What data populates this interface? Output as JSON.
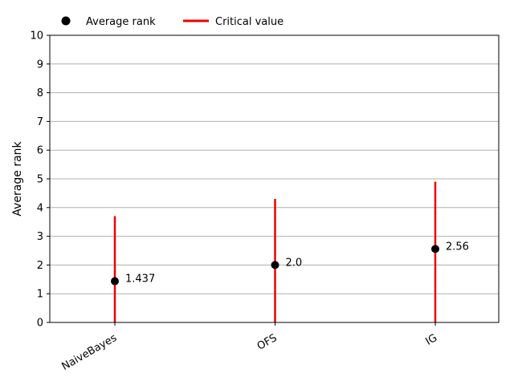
{
  "chart_data": {
    "type": "scatter",
    "categories": [
      "NaiveBayes",
      "OFS",
      "IG"
    ],
    "average_rank": [
      1.437,
      2.0,
      2.56
    ],
    "value_labels": [
      "1.437",
      "2.0",
      "2.56"
    ],
    "critical_value": [
      3.7,
      4.3,
      4.9
    ],
    "ylabel": "Average rank",
    "xlabel": "",
    "ylim": [
      0,
      10
    ],
    "yticks": [
      0,
      1,
      2,
      3,
      4,
      5,
      6,
      7,
      8,
      9,
      10
    ],
    "grid": "horizontal",
    "legend": {
      "placement": "top-left",
      "items": [
        {
          "label": "Average rank",
          "marker": "dot",
          "color": "#000000"
        },
        {
          "label": "Critical value",
          "marker": "line",
          "color": "#ee0000"
        }
      ]
    },
    "colors": {
      "marker": "#000000",
      "critical_line": "#ee0000",
      "grid": "#b0b0b0"
    }
  }
}
